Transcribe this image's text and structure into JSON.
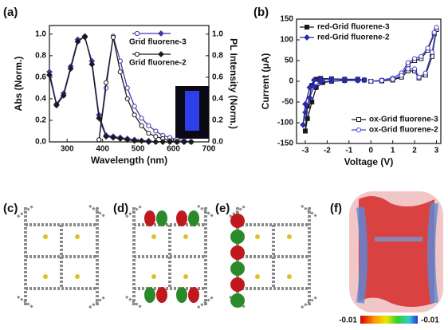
{
  "chart_data": [
    {
      "type": "line",
      "title": "(a)",
      "xlabel": "Wavelength (nm)",
      "ylabel": "Abs (Norm.)",
      "y2label": "PL Intensity (Norm.)",
      "x": [
        250,
        270,
        290,
        310,
        330,
        350,
        370,
        390,
        410,
        430,
        450,
        470,
        490,
        510,
        530,
        550,
        570,
        590,
        610,
        630,
        650
      ],
      "xlim": [
        250,
        700
      ],
      "xticks": [
        300,
        400,
        500,
        600,
        700
      ],
      "ylim": [
        0,
        1.08
      ],
      "yticks": [
        {
          "value": 0,
          "label": "0.0"
        },
        0.2,
        0.4,
        0.6,
        0.8,
        {
          "value": 1,
          "label": "1.0"
        }
      ],
      "y2lim": [
        0,
        1.08
      ],
      "y2ticks": [
        {
          "value": 0,
          "label": "0.0"
        },
        0.2,
        0.4,
        0.6,
        0.8,
        {
          "value": 1,
          "label": "1.0"
        }
      ],
      "legend": "upper right",
      "series": [
        {
          "color": "#3b3ba6",
          "marker": "circle",
          "filled": false,
          "axis": "y2",
          "values": [
            null,
            null,
            null,
            null,
            null,
            null,
            null,
            0.02,
            0.5,
            0.98,
            0.75,
            0.5,
            0.33,
            0.22,
            0.15,
            0.1,
            0.06,
            0.04,
            0.02,
            0.01,
            0
          ]
        },
        {
          "name": "Grid fluorene-3",
          "color": "#3b3ba6",
          "marker": "diamond",
          "filled": true,
          "values": [
            0.65,
            0.35,
            0.45,
            0.7,
            0.95,
            0.97,
            0.75,
            0.25,
            0.06,
            0.05,
            0.04,
            0.03,
            0.02,
            0.01,
            0.01,
            0,
            0,
            0,
            0,
            0,
            0
          ]
        },
        {
          "color": "#1a1a1a",
          "marker": "circle",
          "filled": false,
          "axis": "y2",
          "values": [
            null,
            null,
            null,
            null,
            null,
            null,
            null,
            0.02,
            0.55,
            0.97,
            0.65,
            0.4,
            0.25,
            0.15,
            0.08,
            0.05,
            0.03,
            0.01,
            0,
            0,
            0
          ]
        },
        {
          "name": "Grid fluorene-2",
          "color": "#1a1a1a",
          "marker": "diamond",
          "filled": true,
          "values": [
            0.62,
            0.34,
            0.43,
            0.68,
            0.93,
            0.98,
            0.72,
            0.22,
            0.05,
            0.04,
            0.03,
            0.02,
            0.01,
            0.01,
            0,
            0,
            0,
            0,
            0,
            0,
            0
          ]
        }
      ]
    },
    {
      "type": "line",
      "title": "(b)",
      "xlabel": "Voltage (V)",
      "ylabel": "Current (μA)",
      "xlim": [
        -3.4,
        3.2
      ],
      "xticks": [
        -3,
        -2,
        -1,
        0,
        1,
        2,
        3
      ],
      "ylim": [
        -150,
        150
      ],
      "yticks": [
        -150,
        -100,
        -50,
        0,
        50,
        100,
        150
      ],
      "series": [
        {
          "name": "red-Grid fluorene-3",
          "color": "#1a1a1a",
          "marker": "square",
          "filled": true,
          "legend": "upper left",
          "x": [
            -3.0,
            -2.9,
            -2.7,
            -2.5,
            -2.2,
            -1.8,
            -1.2,
            -0.6,
            -0.3,
            -0.6,
            -1.2,
            -1.8,
            -2.3,
            -2.5,
            -2.7,
            -2.9,
            -3.0
          ],
          "values": [
            -120,
            -90,
            -50,
            -15,
            -3,
            0,
            2,
            3,
            3,
            5,
            5,
            6,
            7,
            5,
            -10,
            -60,
            -120
          ]
        },
        {
          "name": "red-Grid fluorene-2",
          "color": "#2a2ab0",
          "marker": "diamond",
          "filled": true,
          "legend": "upper left",
          "x": [
            -3.1,
            -3.0,
            -2.8,
            -2.6,
            -2.3,
            -1.8,
            -1.2,
            -0.6,
            -0.3,
            -0.6,
            -1.2,
            -1.8,
            -2.3,
            -2.6,
            -2.8,
            -3.0,
            -3.1
          ],
          "values": [
            -105,
            -75,
            -40,
            -12,
            -2,
            1,
            2,
            2,
            3,
            4,
            4,
            5,
            5,
            3,
            -15,
            -55,
            -105
          ]
        },
        {
          "name": "ox-Grid fluorene-3",
          "color": "#1a1a1a",
          "marker": "square",
          "filled": false,
          "legend": "lower right",
          "x": [
            0,
            0.5,
            1.0,
            1.4,
            1.7,
            2.0,
            2.3,
            2.6,
            2.9,
            3.0,
            2.8,
            2.5,
            2.2,
            2.0,
            1.7,
            1.4,
            1.0,
            0.5,
            0
          ],
          "values": [
            0,
            2,
            5,
            12,
            40,
            50,
            55,
            75,
            115,
            125,
            60,
            15,
            8,
            25,
            25,
            10,
            3,
            1,
            0
          ]
        },
        {
          "name": "ox-Grid fluorene-2",
          "color": "#4a4ad0",
          "marker": "circle",
          "filled": false,
          "legend": "lower right",
          "x": [
            0,
            0.5,
            1.0,
            1.4,
            1.7,
            2.0,
            2.3,
            2.6,
            2.9,
            3.0,
            2.8,
            2.5,
            2.2,
            2.0,
            1.7,
            1.4,
            1.0,
            0.5,
            0
          ],
          "values": [
            0,
            3,
            8,
            20,
            45,
            55,
            60,
            80,
            118,
            130,
            70,
            20,
            10,
            30,
            30,
            14,
            5,
            2,
            0
          ]
        }
      ]
    }
  ],
  "panel_labels": [
    "(c)",
    "(d)",
    "(e)",
    "(f)"
  ],
  "colorbar": {
    "min_label": "-0.01",
    "max_label": "-0.01"
  }
}
